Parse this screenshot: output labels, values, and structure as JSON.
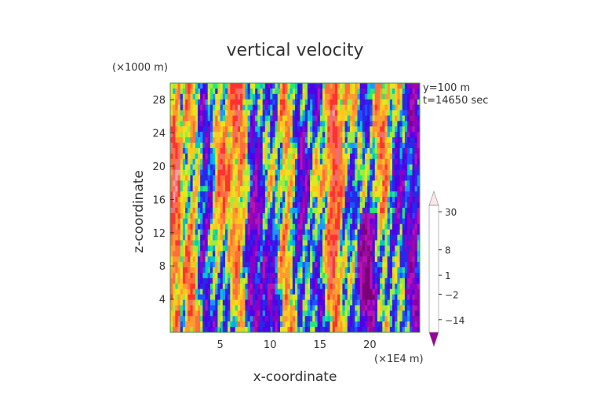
{
  "chart_data": {
    "type": "heatmap",
    "title": "vertical velocity",
    "xlabel": "x-coordinate",
    "ylabel": "z-coordinate",
    "x_unit": "(×1E4 m)",
    "y_unit": "(×1000 m)",
    "annotations": [
      "y=100 m",
      "t=14650 sec"
    ],
    "xlim": [
      0,
      25
    ],
    "ylim": [
      0,
      30
    ],
    "xticks": [
      5,
      10,
      15,
      20
    ],
    "yticks": [
      4,
      8,
      12,
      16,
      20,
      24,
      28
    ],
    "colorbar": {
      "levels": [
        -20,
        -17,
        -14,
        -11,
        -8,
        -5,
        -2,
        -1,
        0,
        1,
        2,
        4,
        6,
        8,
        11,
        14,
        18,
        22,
        26,
        30
      ],
      "labels": [
        {
          "text": "30",
          "value": 30
        },
        {
          "text": "8",
          "value": 8
        },
        {
          "text": "1",
          "value": 1
        },
        {
          "text": "−2",
          "value": -2
        },
        {
          "text": "−14",
          "value": -14
        }
      ],
      "colors": [
        "#7a007a",
        "#9d0b9d",
        "#b414b4",
        "#8a00c8",
        "#5000e6",
        "#2828e6",
        "#1e50ff",
        "#1e96ff",
        "#00c8c8",
        "#28e678",
        "#a0eb3c",
        "#e6e61e",
        "#ffc81e",
        "#ff9b32",
        "#ff6e3c",
        "#ff3232",
        "#f06e6e",
        "#f5a0a0",
        "#fac8c8",
        "#fce6e6"
      ]
    },
    "grid": false,
    "legend": "colorbar-right"
  }
}
